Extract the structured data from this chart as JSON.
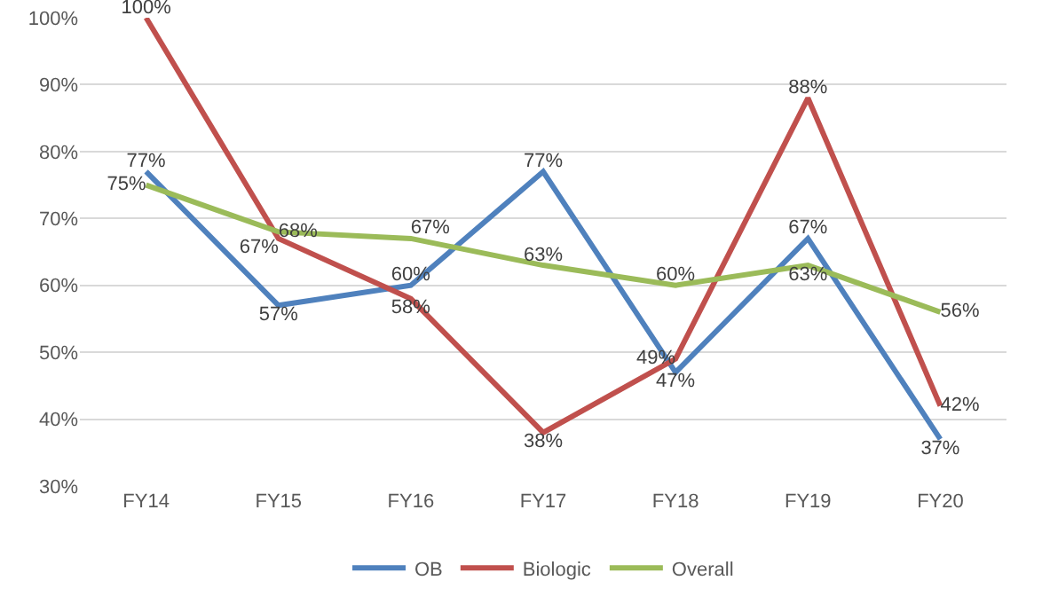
{
  "chart_data": {
    "type": "line",
    "categories": [
      "FY14",
      "FY15",
      "FY16",
      "FY17",
      "FY18",
      "FY19",
      "FY20"
    ],
    "series": [
      {
        "name": "OB",
        "color": "#4f81bd",
        "values": [
          77,
          57,
          60,
          77,
          47,
          67,
          37
        ],
        "value_labels": [
          "77%",
          "57%",
          "60%",
          "77%",
          "47%",
          "67%",
          "37%"
        ]
      },
      {
        "name": "Biologic",
        "color": "#c0504d",
        "values": [
          100,
          67,
          58,
          38,
          49,
          88,
          42
        ],
        "value_labels": [
          "100%",
          "67%",
          "58%",
          "38%",
          "49%",
          "88%",
          "42%"
        ]
      },
      {
        "name": "Overall",
        "color": "#9bbb59",
        "values": [
          75,
          68,
          67,
          63,
          60,
          63,
          56
        ],
        "value_labels": [
          "75%",
          "68%",
          "67%",
          "63%",
          "60%",
          "63%",
          "56%"
        ]
      }
    ],
    "ylim": [
      30,
      100
    ],
    "yticks": [
      {
        "value": 30,
        "label": "30%"
      },
      {
        "value": 40,
        "label": "40%"
      },
      {
        "value": 50,
        "label": "50%"
      },
      {
        "value": 60,
        "label": "60%"
      },
      {
        "value": 70,
        "label": "70%"
      },
      {
        "value": 80,
        "label": "80%"
      },
      {
        "value": 90,
        "label": "90%"
      },
      {
        "value": 100,
        "label": "100%"
      }
    ],
    "grid": "y",
    "legend": "bottom",
    "marker": "none",
    "line_style": "solid"
  }
}
